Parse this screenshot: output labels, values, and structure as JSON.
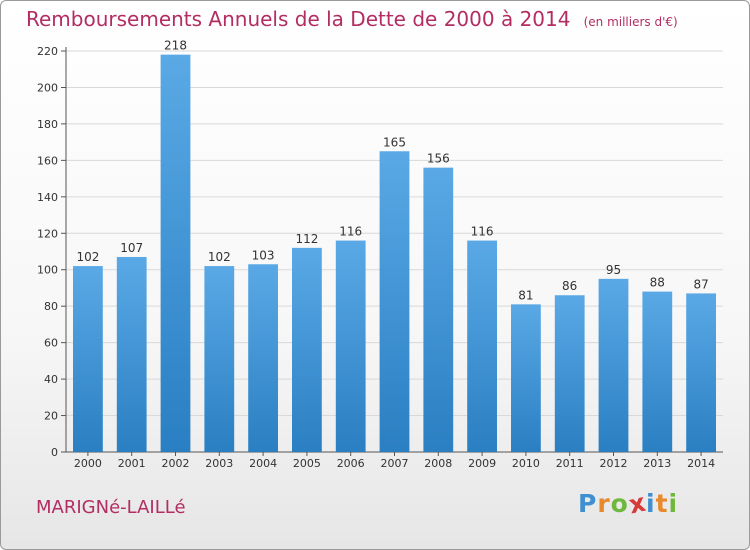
{
  "chart_data": {
    "type": "bar",
    "title": "Remboursements Annuels de la Dette de 2000 à 2014",
    "unit": "(en milliers d'€)",
    "categories": [
      "2000",
      "2001",
      "2002",
      "2003",
      "2004",
      "2005",
      "2006",
      "2007",
      "2008",
      "2009",
      "2010",
      "2011",
      "2012",
      "2013",
      "2014"
    ],
    "values": [
      102,
      107,
      218,
      102,
      103,
      112,
      116,
      165,
      156,
      116,
      81,
      86,
      95,
      88,
      87
    ],
    "ylim": [
      0,
      220
    ],
    "yticks": [
      0,
      20,
      40,
      60,
      80,
      100,
      120,
      140,
      160,
      180,
      200,
      220
    ],
    "grid": true,
    "bar_color_top": "#5aa9e6",
    "bar_color_bottom": "#2a7fc2"
  },
  "footer": {
    "commune": "MARIGNé-LAILLé",
    "logo_letters": [
      "P",
      "r",
      "o",
      "x",
      "i",
      "t",
      "i"
    ],
    "logo_colors": [
      "#3f8fd1",
      "#e8892c",
      "#6fb83d",
      "#d83a3a",
      "#3f8fd1",
      "#e8892c",
      "#6fb83d"
    ]
  }
}
